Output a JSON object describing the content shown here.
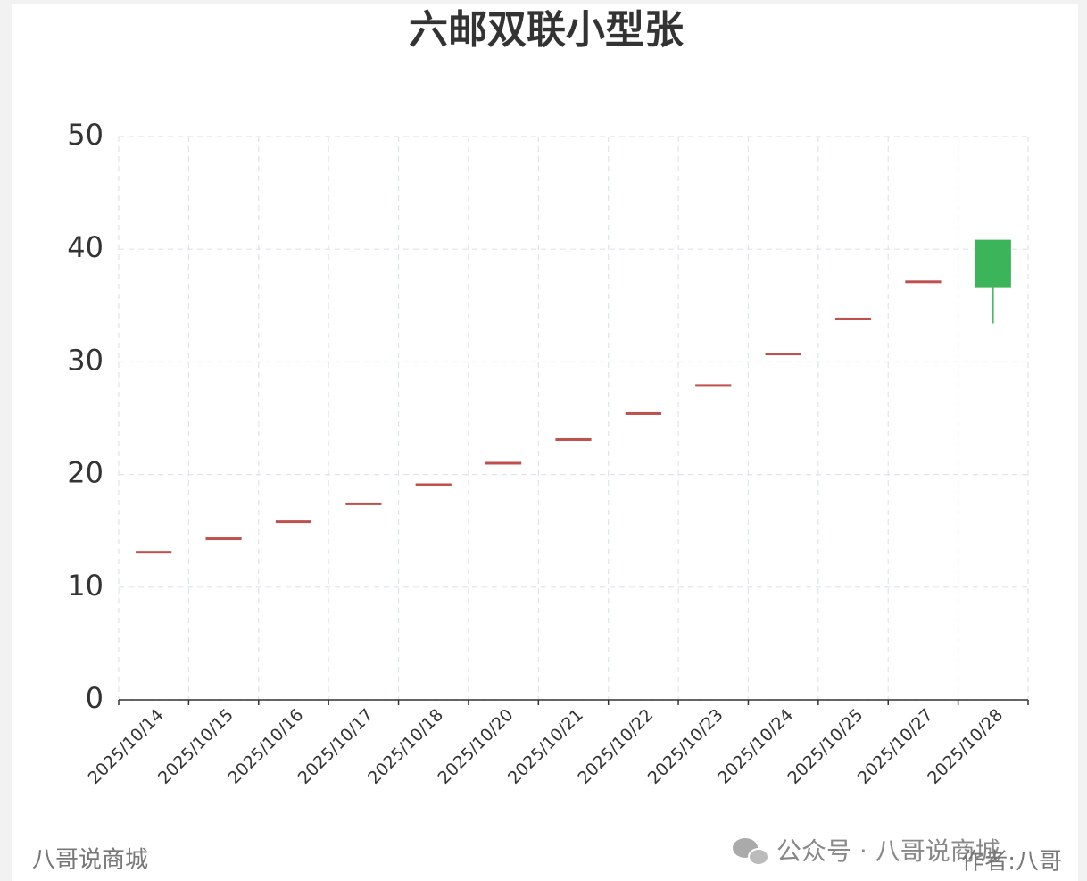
{
  "chart_data": {
    "type": "candlestick",
    "title": "六邮双联小型张",
    "categories": [
      "2025/10/14",
      "2025/10/15",
      "2025/10/16",
      "2025/10/17",
      "2025/10/18",
      "2025/10/20",
      "2025/10/21",
      "2025/10/22",
      "2025/10/23",
      "2025/10/24",
      "2025/10/25",
      "2025/10/27",
      "2025/10/28"
    ],
    "open": [
      13.1,
      14.3,
      15.8,
      17.4,
      19.1,
      21.0,
      23.1,
      25.4,
      27.9,
      30.7,
      33.8,
      37.1,
      40.8
    ],
    "close": [
      13.1,
      14.3,
      15.8,
      17.4,
      19.1,
      21.0,
      23.1,
      25.4,
      27.9,
      30.7,
      33.8,
      37.1,
      36.6
    ],
    "low": [
      13.1,
      14.3,
      15.8,
      17.4,
      19.1,
      21.0,
      23.1,
      25.4,
      27.9,
      30.7,
      33.8,
      37.1,
      33.4
    ],
    "high": [
      13.1,
      14.3,
      15.8,
      17.4,
      19.1,
      21.0,
      23.1,
      25.4,
      27.9,
      30.7,
      33.8,
      37.1,
      40.8
    ],
    "up_color": "#c0504d",
    "down_color": "#3cb55a",
    "ylim": [
      0,
      50
    ],
    "yticks": [
      0,
      10,
      20,
      30,
      40,
      50
    ],
    "grid": true
  },
  "watermarks": {
    "left": "八哥说商城",
    "account": "公众号 · 八哥说商城",
    "author": "作者:八哥"
  }
}
